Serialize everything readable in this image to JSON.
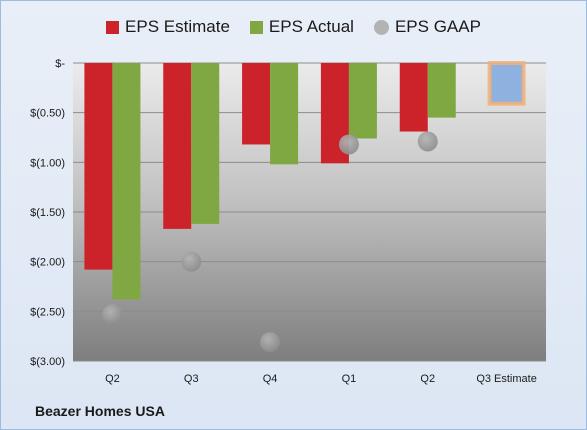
{
  "footer": {
    "company": "Beazer Homes USA"
  },
  "chart_data": {
    "type": "bar",
    "categories": [
      "Q2",
      "Q3",
      "Q4",
      "Q1",
      "Q2",
      "Q3 Estimate"
    ],
    "y_tick_labels": [
      "$-",
      "$(0.50)",
      "$(1.00)",
      "$(1.50)",
      "$(2.00)",
      "$(2.50)",
      "$(3.00)"
    ],
    "ylim": [
      -3.0,
      0
    ],
    "grid": true,
    "legend_position": "top",
    "series": [
      {
        "name": "EPS Estimate",
        "type": "bar",
        "color": "#cc2229",
        "values": [
          -2.08,
          -1.67,
          -0.82,
          -1.01,
          -0.69,
          null
        ]
      },
      {
        "name": "EPS Actual",
        "type": "bar",
        "color": "#7fa843",
        "values": [
          -2.38,
          -1.62,
          -1.02,
          -0.76,
          -0.55,
          null
        ]
      },
      {
        "name": "EPS GAAP",
        "type": "scatter",
        "color": "#a6a6a6",
        "values": [
          -2.53,
          -2.0,
          -2.81,
          -0.82,
          -0.79,
          null
        ]
      },
      {
        "name": "Q3 Estimate",
        "type": "bar",
        "color": "#8fb1df",
        "outline": "#f2b27a",
        "values": [
          null,
          null,
          null,
          null,
          null,
          -0.41
        ]
      }
    ]
  }
}
